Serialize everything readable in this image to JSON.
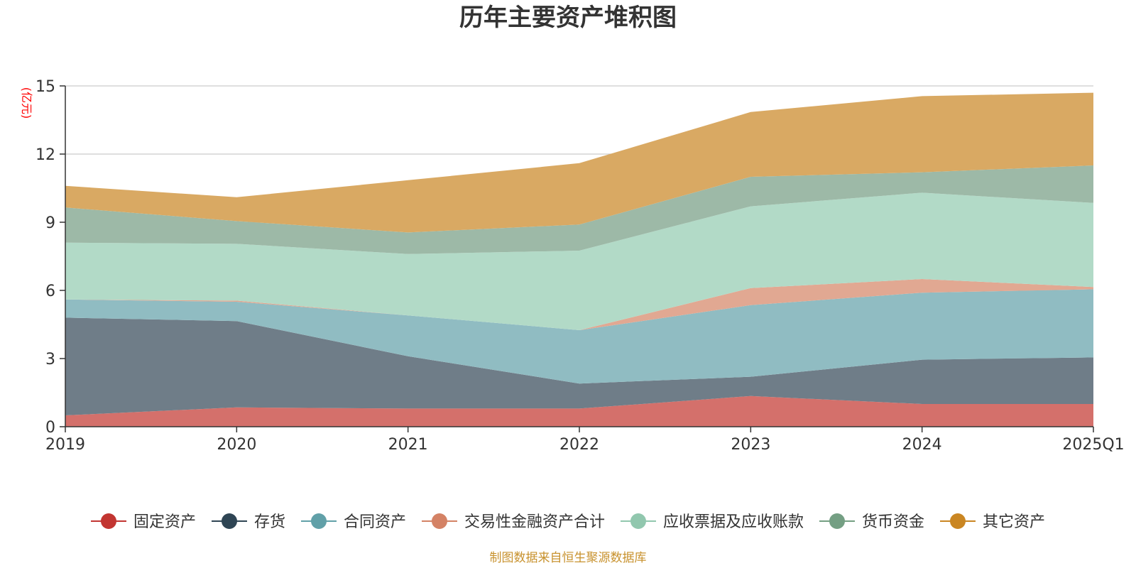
{
  "chart_data": {
    "type": "area",
    "stacked": true,
    "title": "历年主要资产堆积图",
    "ylabel": "(亿元)",
    "ylim": [
      0,
      15
    ],
    "yticks": [
      0,
      3,
      6,
      9,
      12,
      15
    ],
    "ytick_labels": [
      "0",
      "3",
      "6",
      "9",
      "12",
      "15"
    ],
    "categories": [
      "2019",
      "2020",
      "2021",
      "2022",
      "2023",
      "2024",
      "2025Q1"
    ],
    "grid": true,
    "legend_position": "bottom",
    "source_note": "制图数据来自恒生聚源数据库",
    "series": [
      {
        "name": "固定资产",
        "color": "#c23531",
        "fill": "#d4706b",
        "values": [
          0.5,
          0.85,
          0.8,
          0.8,
          1.35,
          1.0,
          1.0
        ]
      },
      {
        "name": "存货",
        "color": "#2f4554",
        "fill": "#6f7d88",
        "values": [
          4.3,
          3.8,
          2.3,
          1.1,
          0.85,
          1.95,
          2.05
        ]
      },
      {
        "name": "合同资产",
        "color": "#61a0a8",
        "fill": "#90bcc2",
        "values": [
          0.8,
          0.85,
          1.8,
          2.35,
          3.15,
          2.95,
          3.0
        ]
      },
      {
        "name": "交易性金融资产合计",
        "color": "#d48265",
        "fill": "#e1a892",
        "values": [
          0.0,
          0.05,
          0.0,
          0.0,
          0.75,
          0.6,
          0.1
        ]
      },
      {
        "name": "应收票据及应收账款",
        "color": "#91c7ae",
        "fill": "#b2dac7",
        "values": [
          2.5,
          2.5,
          2.7,
          3.5,
          3.6,
          3.8,
          3.7
        ]
      },
      {
        "name": "货币资金",
        "color": "#749f83",
        "fill": "#9db9a7",
        "values": [
          1.55,
          1.0,
          0.95,
          1.15,
          1.3,
          0.9,
          1.65
        ]
      },
      {
        "name": "其它资产",
        "color": "#ca8622",
        "fill": "#d9a963",
        "values": [
          0.95,
          1.05,
          2.3,
          2.7,
          2.85,
          3.35,
          3.2
        ]
      }
    ]
  }
}
